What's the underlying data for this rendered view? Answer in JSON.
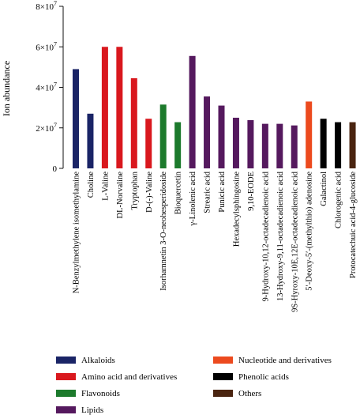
{
  "chart_data": {
    "type": "bar",
    "ylabel": "Ion abundance",
    "ylim": [
      0,
      80000000
    ],
    "yticks": [
      {
        "value": 0,
        "base": "0",
        "exp": ""
      },
      {
        "value": 20000000,
        "base": "2×10",
        "exp": "7"
      },
      {
        "value": 40000000,
        "base": "4×10",
        "exp": "7"
      },
      {
        "value": 60000000,
        "base": "6×10",
        "exp": "7"
      },
      {
        "value": 80000000,
        "base": "8×10",
        "exp": "7"
      }
    ],
    "categories": [
      "N-Benzylmethylene isomethylamine",
      "Choline",
      "L-Valine",
      "DL-Norvaline",
      "Tryptophan",
      "D-(-)-Valine",
      "Isorhamnetin 3-O-neohesperidoside",
      "Bioquercetin",
      "γ-Linolenic acid",
      "Strearic acid",
      "Punicic acid",
      "Hexadecylsphingosine",
      "9,10-EODE",
      "9-Hydroxy-10,12-octadecadienoic acid",
      "13-Hydroxy-9,11-octadecadienoic acid",
      "9S-Hyroxy-10E,12E-octadecadienoic acid",
      "5ʹ-Deoxy-5ʹ-(methylthio) adenosine",
      "Galactinol",
      "Chlorogenic acid",
      "Protocatechuic acid-4-glucoside"
    ],
    "values": [
      49000000,
      27000000,
      60000000,
      60000000,
      44500000,
      24500000,
      31500000,
      22800000,
      55500000,
      35500000,
      31000000,
      25000000,
      23800000,
      22000000,
      22000000,
      21200000,
      33000000,
      24500000,
      22800000,
      22800000
    ],
    "groups": [
      0,
      0,
      1,
      1,
      1,
      1,
      2,
      2,
      3,
      3,
      3,
      3,
      3,
      3,
      3,
      3,
      4,
      5,
      5,
      6
    ],
    "legend": [
      {
        "name": "Alkaloids",
        "color": "#1a2466"
      },
      {
        "name": "Amino acid and derivatives",
        "color": "#d9181e"
      },
      {
        "name": "Flavonoids",
        "color": "#1c7a2c"
      },
      {
        "name": "Lipids",
        "color": "#55195e"
      },
      {
        "name": "Nucleotide and derivatives",
        "color": "#ec4a1e"
      },
      {
        "name": "Phenolic acids",
        "color": "#000000"
      },
      {
        "name": "Others",
        "color": "#4a2410"
      }
    ],
    "legend_position": "bottom"
  }
}
